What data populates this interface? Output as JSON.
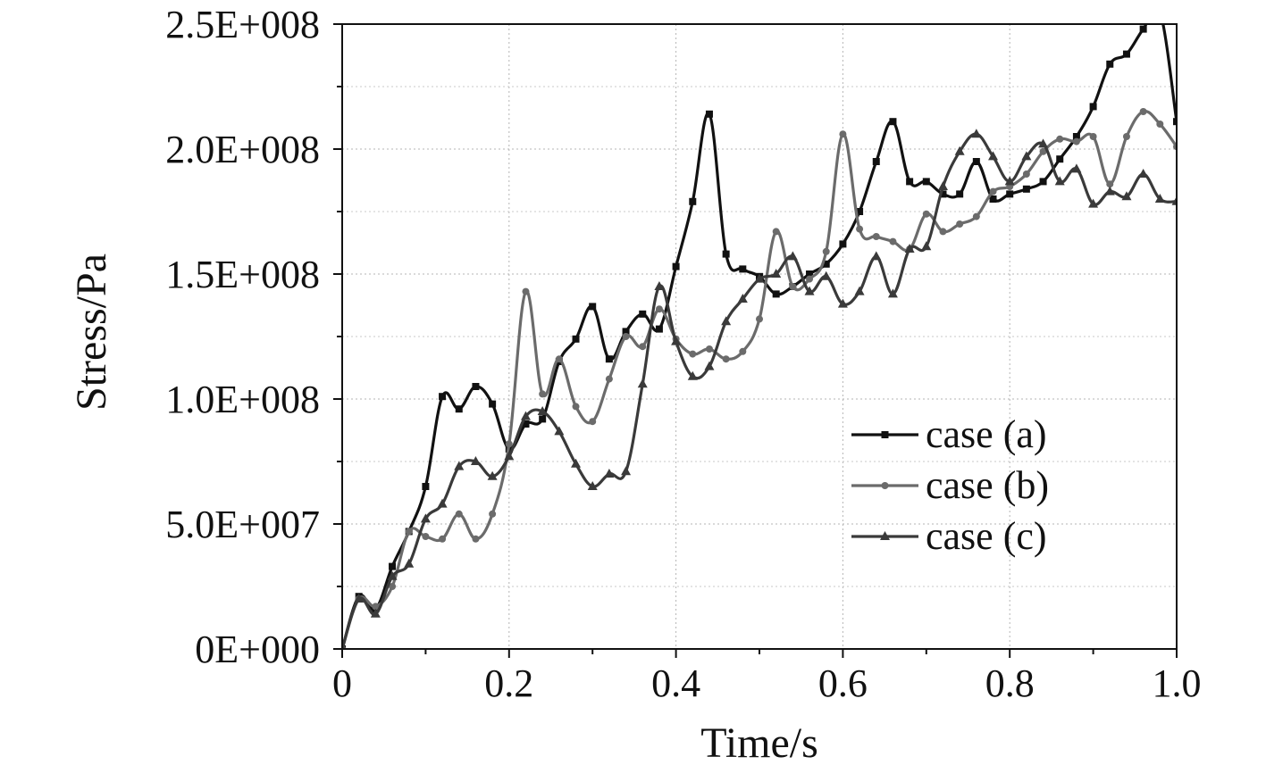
{
  "chart_data": {
    "type": "line",
    "xlabel": "Time/s",
    "ylabel": "Stress/Pa",
    "xlim": [
      0,
      1.0
    ],
    "ylim": [
      0,
      250000000
    ],
    "x_ticks": [
      "0",
      "0.2",
      "0.4",
      "0.6",
      "0.8",
      "1.0"
    ],
    "x_tick_values": [
      0,
      0.2,
      0.4,
      0.6,
      0.8,
      1.0
    ],
    "y_ticks": [
      "0E+000",
      "5.0E+007",
      "1.0E+008",
      "1.5E+008",
      "2.0E+008",
      "2.5E+008"
    ],
    "y_tick_values": [
      0,
      50000000,
      100000000,
      150000000,
      200000000,
      250000000
    ],
    "grid": true,
    "legend_position": "lower-right",
    "x": [
      0,
      0.02,
      0.04,
      0.06,
      0.08,
      0.1,
      0.12,
      0.14,
      0.16,
      0.18,
      0.2,
      0.22,
      0.24,
      0.26,
      0.28,
      0.3,
      0.32,
      0.34,
      0.36,
      0.38,
      0.4,
      0.42,
      0.44,
      0.46,
      0.48,
      0.5,
      0.52,
      0.54,
      0.56,
      0.58,
      0.6,
      0.62,
      0.64,
      0.66,
      0.68,
      0.7,
      0.72,
      0.74,
      0.76,
      0.78,
      0.8,
      0.82,
      0.84,
      0.86,
      0.88,
      0.9,
      0.92,
      0.94,
      0.96,
      0.98,
      1.0
    ],
    "series": [
      {
        "name": "case (a)",
        "color": "#111111",
        "marker": "square",
        "values": [
          0,
          21000000,
          16000000,
          33000000,
          47000000,
          65000000,
          101000000,
          96000000,
          105000000,
          98000000,
          80000000,
          90000000,
          92000000,
          115000000,
          124000000,
          137000000,
          116000000,
          127000000,
          134000000,
          128000000,
          153000000,
          179000000,
          214000000,
          158000000,
          152000000,
          149000000,
          142000000,
          145000000,
          150000000,
          154000000,
          162000000,
          175000000,
          195000000,
          211000000,
          187000000,
          187000000,
          182000000,
          182000000,
          195000000,
          180000000,
          182000000,
          184000000,
          187000000,
          196000000,
          205000000,
          217000000,
          234000000,
          238000000,
          248000000,
          255000000,
          211000000
        ]
      },
      {
        "name": "case (b)",
        "color": "#6b6b6b",
        "marker": "circle",
        "values": [
          0,
          20000000,
          17000000,
          25000000,
          47000000,
          45000000,
          44000000,
          54000000,
          44000000,
          54000000,
          82000000,
          143000000,
          102000000,
          116000000,
          97000000,
          91000000,
          108000000,
          125000000,
          121000000,
          136000000,
          124000000,
          118000000,
          120000000,
          116000000,
          119000000,
          132000000,
          167000000,
          145000000,
          148000000,
          159000000,
          206000000,
          168000000,
          165000000,
          163000000,
          160000000,
          174000000,
          167000000,
          170000000,
          173000000,
          183000000,
          185000000,
          190000000,
          199000000,
          204000000,
          203000000,
          205000000,
          186000000,
          205000000,
          215000000,
          210000000,
          201000000
        ]
      },
      {
        "name": "case (c)",
        "color": "#3a3a3a",
        "marker": "triangle",
        "values": [
          0,
          20000000,
          14000000,
          29000000,
          34000000,
          52000000,
          58000000,
          73000000,
          75000000,
          69000000,
          77000000,
          93000000,
          95000000,
          87000000,
          74000000,
          65000000,
          70000000,
          71000000,
          106000000,
          145000000,
          123000000,
          109000000,
          113000000,
          131000000,
          140000000,
          148000000,
          150000000,
          157000000,
          143000000,
          149000000,
          138000000,
          143000000,
          157000000,
          142000000,
          160000000,
          161000000,
          185000000,
          199000000,
          206000000,
          197000000,
          187000000,
          197000000,
          202000000,
          187000000,
          192000000,
          178000000,
          183000000,
          181000000,
          190000000,
          180000000,
          179000000
        ]
      }
    ]
  }
}
